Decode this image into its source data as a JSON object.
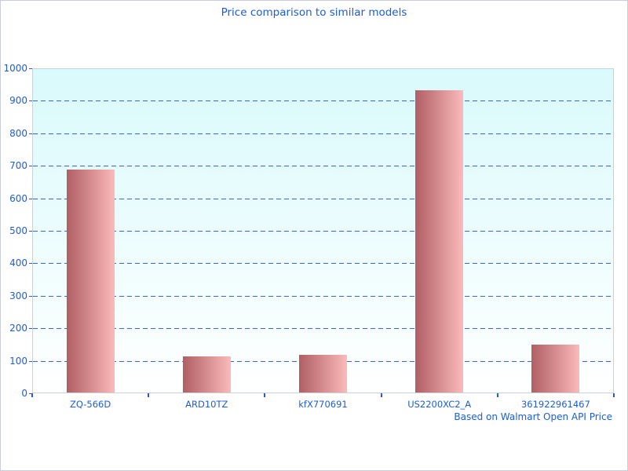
{
  "title": "Price comparison to similar models",
  "footer": "Based on Walmart Open API Price",
  "colors": {
    "text_blue": "#1b5ed6",
    "grid_blue": "#3a65cc",
    "tick_blue": "#2a5cd0",
    "bar_gradient_left": "#b05f63",
    "bar_gradient_right": "#fbbaba",
    "plot_bg_top": "#d9fafc",
    "plot_bg_bottom": "#ffffff",
    "plot_border": "#c9d2d6",
    "page_border": "#c9cdd8"
  },
  "chart_data": {
    "type": "bar",
    "title": "Price comparison to similar models",
    "categories": [
      "ZQ-566D",
      "ARD10TZ",
      "kfX770691",
      "US2200XC2_A",
      "361922961467"
    ],
    "values": [
      687,
      112,
      115,
      930,
      147
    ],
    "xlabel": "",
    "ylabel": "",
    "ylim": [
      0,
      1000
    ],
    "ytick_interval": 100,
    "ytick_labels": [
      "0",
      "100",
      "200",
      "300",
      "400",
      "500",
      "600",
      "700",
      "800",
      "900",
      "1000"
    ],
    "grid": "horizontal dashed, at each 100",
    "legend_position": "none",
    "annotation": "Based on Walmart Open API Price",
    "bar_style": "horizontal gradient dark-rose to light-pink"
  }
}
